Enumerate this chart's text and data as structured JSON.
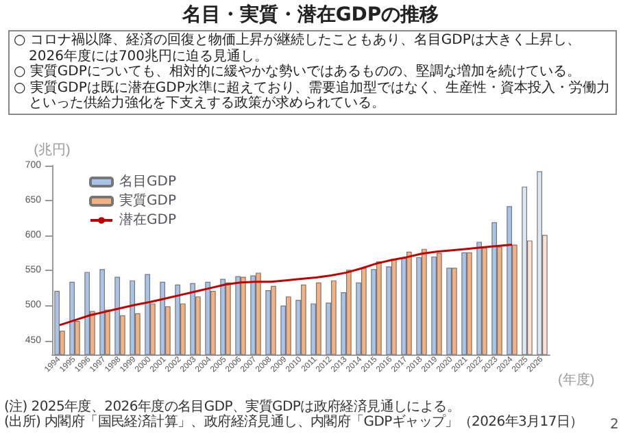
{
  "chart_data": {
    "type": "bar",
    "title": "名目・実質・潜在GDPの推移",
    "xlabel": "(年度)",
    "ylabel": "(兆円)",
    "annotations": [
      "○ コロナ禍以降、経済の回復と物価上昇が継続したこともあり、名目GDPは大きく上昇し、2026年度には700兆円に迫る見通し。",
      "○ 実質GDPについても、相対的に緩やかな勢いではあるものの、堅調な増加を続けている。",
      "○ 実質GDPは既に潜在GDP水準に超えており、需要追加型ではなく、生産性・資本投入・労働力といった供給力強化を下支えする政策が求められている。",
      "(注) 2025年度、2026年度の名目GDP、実質GDPは政府経済見通しによる。",
      "(出所) 内閣府「国民経済計算」、政府経済見通し、内閣府「GDPギャップ」（2026年3月17日）",
      "2"
    ],
    "categories": [
      "1994",
      "1995",
      "1996",
      "1997",
      "1998",
      "1999",
      "2000",
      "2001",
      "2002",
      "2003",
      "2004",
      "2005",
      "2006",
      "2007",
      "2008",
      "2009",
      "2010",
      "2011",
      "2012",
      "2013",
      "2014",
      "2015",
      "2016",
      "2017",
      "2018",
      "2019",
      "2020",
      "2021",
      "2022",
      "2023",
      "2024",
      "2025",
      "2026"
    ],
    "series": [
      {
        "name": "名目GDP",
        "color": "#a9c4eb",
        "colors": [
          "#a9c4eb",
          "#a9c4eb",
          "#a9c4eb",
          "#a9c4eb",
          "#a9c4eb",
          "#a9c4eb",
          "#a9c4eb",
          "#a9c4eb",
          "#a9c4eb",
          "#a9c4eb",
          "#a9c4eb",
          "#a9c4eb",
          "#a9c4eb",
          "#a9c4eb",
          "#a9c4eb",
          "#a9c4eb",
          "#a9c4eb",
          "#a9c4eb",
          "#a9c4eb",
          "#a9c4eb",
          "#a9c4eb",
          "#a9c4eb",
          "#a9c4eb",
          "#a9c4eb",
          "#a9c4eb",
          "#a9c4eb",
          "#a9c4eb",
          "#a9c4eb",
          "#a9c4eb",
          "#a9c4eb",
          "#a9c4eb",
          "#dde8f7",
          "#dde8f7"
        ],
        "values": [
          521,
          534,
          548,
          552,
          541,
          536,
          545,
          534,
          530,
          532,
          534,
          538,
          542,
          543,
          522,
          500,
          508,
          503,
          504,
          519,
          533,
          552,
          556,
          568,
          569,
          570,
          554,
          576,
          591,
          619,
          642,
          670,
          692
        ]
      },
      {
        "name": "実質GDP",
        "color": "#f4b183",
        "colors": [
          "#f4b183",
          "#f4b183",
          "#f4b183",
          "#f4b183",
          "#f4b183",
          "#f4b183",
          "#f4b183",
          "#f4b183",
          "#f4b183",
          "#f4b183",
          "#f4b183",
          "#f4b183",
          "#f4b183",
          "#f4b183",
          "#f4b183",
          "#f4b183",
          "#f4b183",
          "#f4b183",
          "#f4b183",
          "#f4b183",
          "#f4b183",
          "#f4b183",
          "#f4b183",
          "#f4b183",
          "#f4b183",
          "#f4b183",
          "#f4b183",
          "#f4b183",
          "#f4b183",
          "#f4b183",
          "#f4b183",
          "#fbe2d5",
          "#fbe2d5"
        ],
        "values": [
          464,
          478,
          492,
          494,
          486,
          489,
          503,
          499,
          503,
          513,
          521,
          533,
          541,
          547,
          528,
          513,
          530,
          533,
          536,
          551,
          554,
          563,
          567,
          577,
          581,
          575,
          554,
          576,
          583,
          584,
          587,
          593,
          601
        ]
      },
      {
        "name": "潜在GDP",
        "type": "line",
        "color": "#c00000",
        "values": [
          472,
          479,
          486,
          491,
          496,
          501,
          505,
          510,
          515,
          520,
          525,
          530,
          533,
          534,
          534,
          536,
          538,
          540,
          543,
          547,
          553,
          560,
          565,
          569,
          574,
          577,
          579,
          581,
          583,
          585,
          587,
          null,
          null
        ]
      }
    ],
    "ylim": [
      430,
      700
    ],
    "yticks": [
      450,
      500,
      550,
      600,
      650,
      700
    ],
    "legend": "top left",
    "grid": false
  }
}
